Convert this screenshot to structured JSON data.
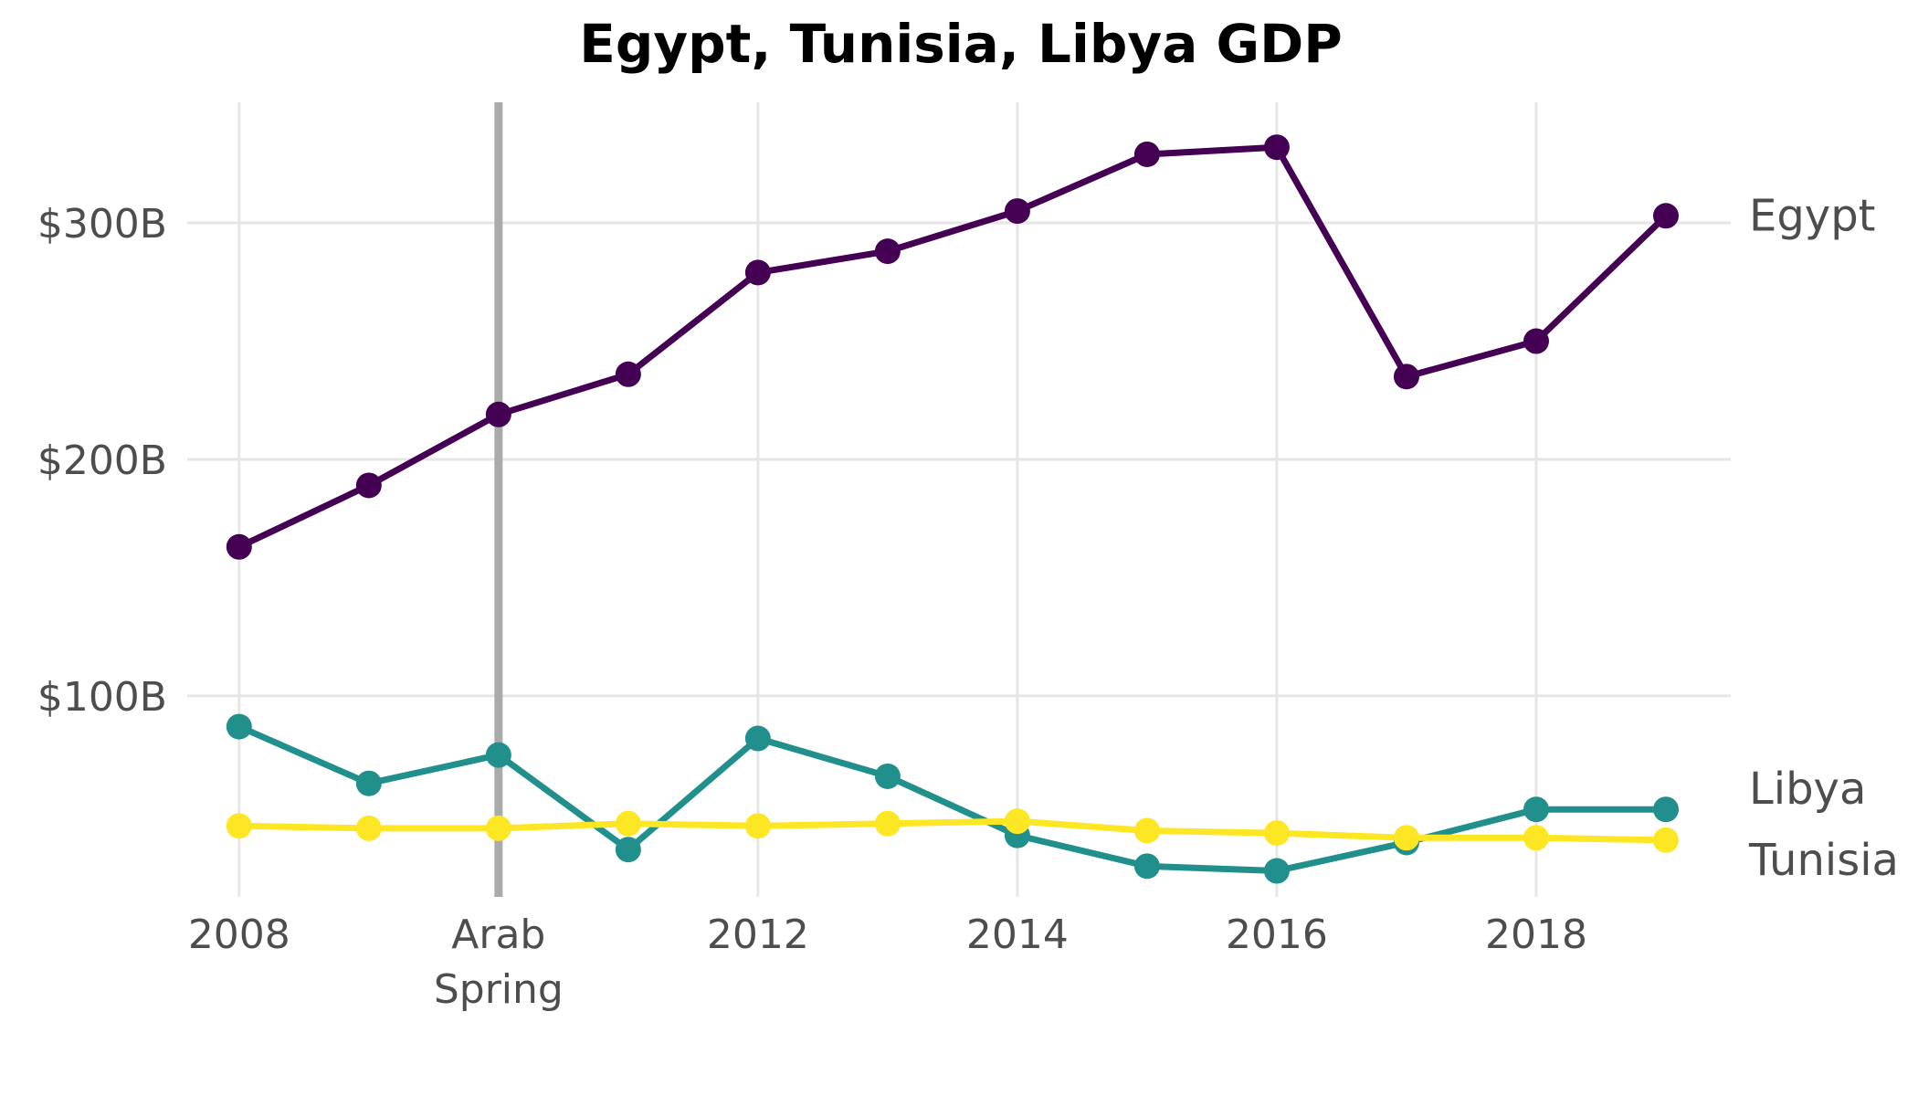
{
  "chart_data": {
    "type": "line",
    "title": "Egypt, Tunisia, Libya GDP",
    "xlabel": "",
    "ylabel": "",
    "xlim": [
      2007.6,
      2019.5
    ],
    "ylim": [
      15,
      351
    ],
    "x_ticks": [
      {
        "value": 2008,
        "label": "2008"
      },
      {
        "value": 2010,
        "label": "Arab\nSpring"
      },
      {
        "value": 2012,
        "label": "2012"
      },
      {
        "value": 2014,
        "label": "2014"
      },
      {
        "value": 2016,
        "label": "2016"
      },
      {
        "value": 2018,
        "label": "2018"
      }
    ],
    "y_ticks": [
      {
        "value": 100,
        "label": "$100B"
      },
      {
        "value": 200,
        "label": "$200B"
      },
      {
        "value": 300,
        "label": "$300B"
      }
    ],
    "grid": true,
    "legend": "direct labels at line ends",
    "annotations": [
      {
        "type": "vertical-line",
        "x": 2010,
        "label": "Arab\nSpring",
        "color": "#aaaaaa"
      }
    ],
    "x": [
      2008,
      2009,
      2010,
      2011,
      2012,
      2013,
      2014,
      2015,
      2016,
      2017,
      2018,
      2019
    ],
    "series": [
      {
        "name": "Egypt",
        "color": "#440154",
        "values": [
          163,
          189,
          219,
          236,
          279,
          288,
          305,
          329,
          332,
          235,
          250,
          303
        ]
      },
      {
        "name": "Libya",
        "color": "#21908c",
        "values": [
          87,
          63,
          75,
          35,
          82,
          66,
          41,
          28,
          26,
          38,
          52,
          52
        ]
      },
      {
        "name": "Tunisia",
        "color": "#fde725",
        "values": [
          45,
          44,
          44,
          46,
          45,
          46,
          47,
          43,
          42,
          40,
          40,
          39
        ]
      }
    ],
    "colors": {
      "grid": "#e6e6e6",
      "tick_text": "#4d4d4d",
      "title_text": "#000000"
    }
  }
}
